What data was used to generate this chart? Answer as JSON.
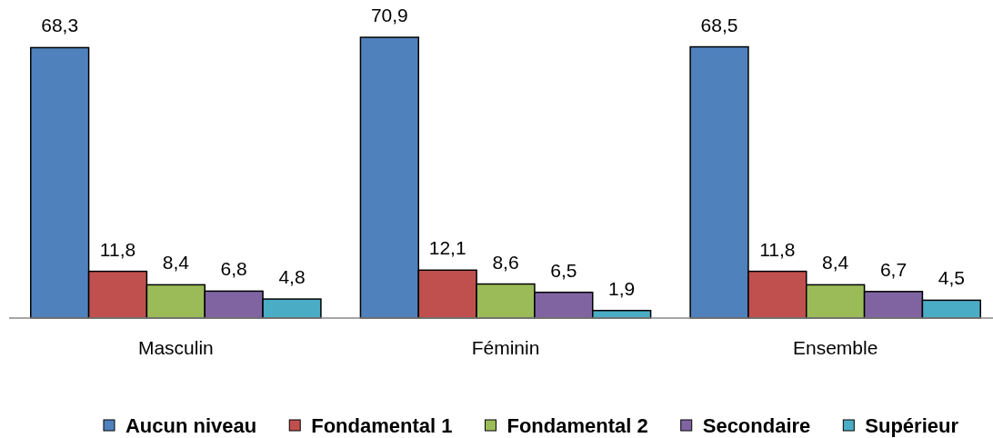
{
  "chart_data": {
    "type": "bar",
    "categories": [
      "Masculin",
      "Féminin",
      "Ensemble"
    ],
    "series": [
      {
        "name": "Aucun niveau",
        "color": "#4f81bd",
        "values": [
          68.3,
          70.9,
          68.5
        ],
        "value_labels": [
          "68,3",
          "70,9",
          "68,5"
        ]
      },
      {
        "name": "Fondamental 1",
        "color": "#c0504d",
        "values": [
          11.8,
          12.1,
          11.8
        ],
        "value_labels": [
          "11,8",
          "12,1",
          "11,8"
        ]
      },
      {
        "name": "Fondamental 2",
        "color": "#9bbb59",
        "values": [
          8.4,
          8.6,
          8.4
        ],
        "value_labels": [
          "8,4",
          "8,6",
          "8,4"
        ]
      },
      {
        "name": "Secondaire",
        "color": "#8064a2",
        "values": [
          6.8,
          6.5,
          6.7
        ],
        "value_labels": [
          "6,8",
          "6,5",
          "6,7"
        ]
      },
      {
        "name": "Supérieur",
        "color": "#4bacc6",
        "values": [
          4.8,
          1.9,
          4.5
        ],
        "value_labels": [
          "4,8",
          "1,9",
          "4,5"
        ]
      }
    ],
    "legend": "bottom"
  }
}
